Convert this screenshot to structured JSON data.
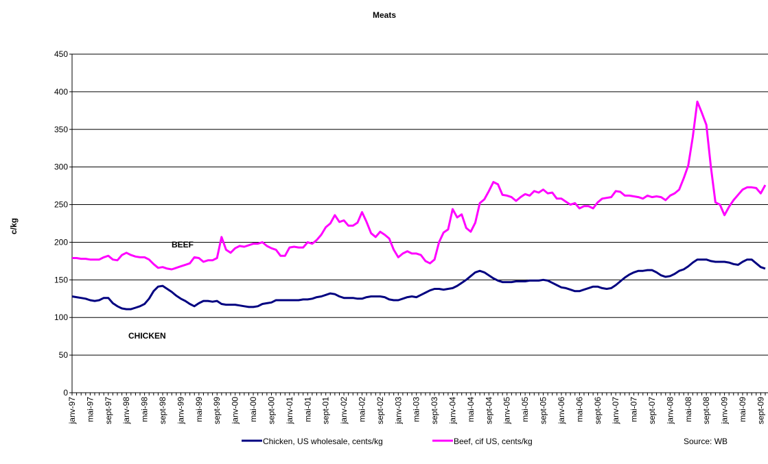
{
  "chart_data": {
    "type": "line",
    "title": "Meats",
    "y_label": "c/kg",
    "categories": [
      "janv-97",
      null,
      null,
      null,
      "mai-97",
      null,
      null,
      null,
      "sept-97",
      null,
      null,
      null,
      "janv-98",
      null,
      null,
      null,
      "mai-98",
      null,
      null,
      null,
      "sept-98",
      null,
      null,
      null,
      "janv-99",
      null,
      null,
      null,
      "mai-99",
      null,
      null,
      null,
      "sept-99",
      null,
      null,
      null,
      "janv-00",
      null,
      null,
      null,
      "mai-00",
      null,
      null,
      null,
      "sept-00",
      null,
      null,
      null,
      "janv-01",
      null,
      null,
      null,
      "mai-01",
      null,
      null,
      null,
      "sept-01",
      null,
      null,
      null,
      "janv-02",
      null,
      null,
      null,
      "mai-02",
      null,
      null,
      null,
      "sept-02",
      null,
      null,
      null,
      "janv-03",
      null,
      null,
      null,
      "mai-03",
      null,
      null,
      null,
      "sept-03",
      null,
      null,
      null,
      "janv-04",
      null,
      null,
      null,
      "mai-04",
      null,
      null,
      null,
      "sept-04",
      null,
      null,
      null,
      "janv-05",
      null,
      null,
      null,
      "mai-05",
      null,
      null,
      null,
      "sept-05",
      null,
      null,
      null,
      "janv-06",
      null,
      null,
      null,
      "mai-06",
      null,
      null,
      null,
      "sept-06",
      null,
      null,
      null,
      "janv-07",
      null,
      null,
      null,
      "mai-07",
      null,
      null,
      null,
      "sept-07",
      null,
      null,
      null,
      "janv-08",
      null,
      null,
      null,
      "mai-08",
      null,
      null,
      null,
      "sept-08",
      null,
      null,
      null,
      "janv-09",
      null,
      null,
      null,
      "mai-09",
      null,
      null,
      null,
      "sept-09",
      null
    ],
    "series": [
      {
        "name": "Chicken, US wholesale, cents/kg",
        "color": "#000080",
        "values": [
          128,
          127,
          126,
          125,
          123,
          122,
          123,
          126,
          126,
          119,
          115,
          112,
          111,
          111,
          113,
          115,
          118,
          125,
          135,
          141,
          142,
          138,
          134,
          129,
          125,
          122,
          118,
          115,
          119,
          122,
          122,
          121,
          122,
          118,
          117,
          117,
          117,
          116,
          115,
          114,
          114,
          115,
          118,
          119,
          120,
          123,
          123,
          123,
          123,
          123,
          123,
          124,
          124,
          125,
          127,
          128,
          130,
          132,
          131,
          128,
          126,
          126,
          126,
          125,
          125,
          127,
          128,
          128,
          128,
          127,
          124,
          123,
          123,
          125,
          127,
          128,
          127,
          130,
          133,
          136,
          138,
          138,
          137,
          138,
          139,
          142,
          146,
          150,
          155,
          160,
          162,
          160,
          156,
          152,
          149,
          147,
          147,
          147,
          148,
          148,
          148,
          149,
          149,
          149,
          150,
          149,
          146,
          143,
          140,
          139,
          137,
          135,
          135,
          137,
          139,
          141,
          141,
          139,
          138,
          139,
          143,
          148,
          153,
          157,
          160,
          162,
          162,
          163,
          163,
          160,
          156,
          154,
          155,
          158,
          162,
          164,
          168,
          173,
          177,
          177,
          177,
          175,
          174,
          174,
          174,
          173,
          171,
          170,
          174,
          177,
          177,
          172,
          167,
          165
        ]
      },
      {
        "name": "Beef, cif US, cents/kg",
        "color": "#ff00ff",
        "values": [
          179,
          179,
          178,
          178,
          177,
          177,
          177,
          180,
          182,
          177,
          176,
          183,
          186,
          183,
          181,
          180,
          180,
          177,
          171,
          166,
          167,
          165,
          164,
          166,
          168,
          170,
          172,
          180,
          179,
          174,
          176,
          176,
          179,
          207,
          190,
          186,
          192,
          195,
          194,
          196,
          198,
          198,
          200,
          195,
          192,
          190,
          182,
          182,
          193,
          194,
          193,
          193,
          200,
          198,
          203,
          210,
          220,
          225,
          236,
          227,
          229,
          222,
          222,
          226,
          240,
          227,
          212,
          207,
          214,
          210,
          205,
          190,
          180,
          185,
          188,
          185,
          185,
          183,
          175,
          172,
          177,
          200,
          213,
          217,
          244,
          233,
          237,
          219,
          214,
          226,
          252,
          257,
          268,
          280,
          277,
          263,
          262,
          260,
          255,
          260,
          264,
          262,
          268,
          266,
          270,
          265,
          266,
          258,
          258,
          254,
          250,
          252,
          245,
          248,
          248,
          245,
          253,
          258,
          259,
          260,
          268,
          267,
          262,
          262,
          261,
          260,
          258,
          262,
          260,
          261,
          260,
          256,
          262,
          265,
          270,
          285,
          302,
          340,
          387,
          372,
          356,
          300,
          253,
          250,
          236,
          247,
          256,
          263,
          270,
          273,
          273,
          272,
          265,
          276
        ]
      }
    ],
    "annotations": [
      "BEEF",
      "CHICKEN"
    ],
    "source": "Source: WB",
    "ylim": [
      0,
      450
    ],
    "yticks": [
      0,
      50,
      100,
      150,
      200,
      250,
      300,
      350,
      400,
      450
    ],
    "grid": true
  }
}
